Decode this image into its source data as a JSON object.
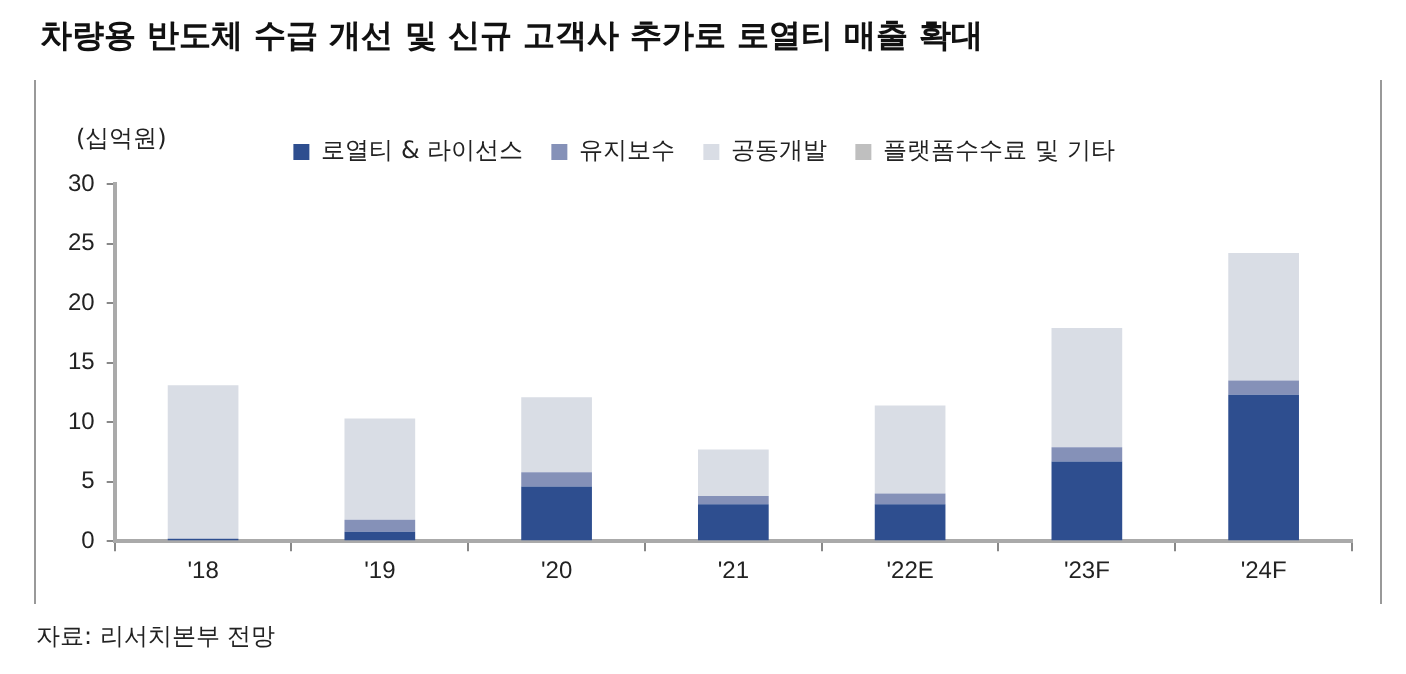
{
  "chart_data": {
    "type": "bar",
    "title": "차량용 반도체 수급 개선 및 신규 고객사 추가로 로열티 매출 확대",
    "ylabel": "(십억원)",
    "categories": [
      "'18",
      "'19",
      "'20",
      "'21",
      "'22E",
      "'23F",
      "'24F"
    ],
    "stacked": true,
    "series": [
      {
        "name": "로열티 & 라이선스",
        "color": "#2e4e8f",
        "values": [
          0.2,
          0.8,
          4.6,
          3.1,
          3.1,
          6.7,
          12.3
        ]
      },
      {
        "name": "유지보수",
        "color": "#8591b8",
        "values": [
          0,
          1.0,
          1.2,
          0.7,
          0.9,
          1.2,
          1.2
        ]
      },
      {
        "name": "공동개발",
        "color": "#d9dde5",
        "values": [
          12.9,
          8.5,
          6.3,
          3.9,
          7.4,
          10.0,
          10.7
        ]
      },
      {
        "name": "플랫폼수수료 및 기타",
        "color": "#bfbfbf",
        "values": [
          0,
          0,
          0,
          0,
          0,
          0,
          0
        ]
      }
    ],
    "ylim": [
      0,
      30
    ],
    "yticks": [
      0,
      5,
      10,
      15,
      20,
      25,
      30
    ],
    "grid": false,
    "legend": "top",
    "annotations": [
      "자료: 리서치본부 전망"
    ]
  }
}
